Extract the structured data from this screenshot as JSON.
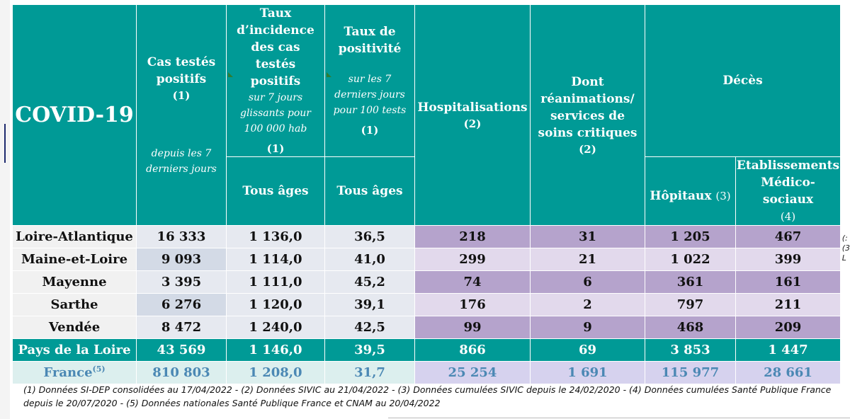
{
  "table": {
    "title": "COVID-19",
    "headers": {
      "cas": {
        "label": "Cas testés positifs",
        "note": "(1)",
        "sub": "depuis les 7 derniers jours"
      },
      "incidence": {
        "label": "Taux d’incidence des cas testés positifs",
        "sub": "sur 7 jours glissants pour 100 000 hab",
        "note": "(1)",
        "age": "Tous âges"
      },
      "positivite": {
        "label": "Taux de positivité",
        "sub": "sur les 7 derniers jours pour 100 tests",
        "note": "(1)",
        "age": "Tous âges"
      },
      "hosp": {
        "label": "Hospitalisations",
        "note": "(2)"
      },
      "rea": {
        "label": "Dont réanimations/ services de soins critiques",
        "note": "(2)"
      },
      "deces": {
        "label": "Décès"
      },
      "hopitaux": {
        "label": "Hôpitaux",
        "note": "(3)"
      },
      "ems": {
        "label": "Etablissements Médico-sociaux",
        "note": "(4)"
      }
    },
    "rows": [
      {
        "name": "Loire-Atlantique",
        "cas": "16 333",
        "incidence": "1 136,0",
        "positivite": "36,5",
        "hosp": "218",
        "rea": "31",
        "hopitaux": "1 205",
        "ems": "467"
      },
      {
        "name": "Maine-et-Loire",
        "cas": "9 093",
        "incidence": "1 114,0",
        "positivite": "41,0",
        "hosp": "299",
        "rea": "21",
        "hopitaux": "1 022",
        "ems": "399"
      },
      {
        "name": "Mayenne",
        "cas": "3 395",
        "incidence": "1 111,0",
        "positivite": "45,2",
        "hosp": "74",
        "rea": "6",
        "hopitaux": "361",
        "ems": "161"
      },
      {
        "name": "Sarthe",
        "cas": "6 276",
        "incidence": "1 120,0",
        "positivite": "39,1",
        "hosp": "176",
        "rea": "2",
        "hopitaux": "797",
        "ems": "211"
      },
      {
        "name": "Vendée",
        "cas": "8 472",
        "incidence": "1 240,0",
        "positivite": "42,5",
        "hosp": "99",
        "rea": "9",
        "hopitaux": "468",
        "ems": "209"
      }
    ],
    "region": {
      "name": "Pays de la Loire",
      "cas": "43 569",
      "incidence": "1 146,0",
      "positivite": "39,5",
      "hosp": "866",
      "rea": "69",
      "hopitaux": "3 853",
      "ems": "1 447"
    },
    "france": {
      "name": "France",
      "note": "(5)",
      "cas": "810 803",
      "incidence": "1 208,0",
      "positivite": "31,7",
      "hosp": "25 254",
      "rea": "1 691",
      "hopitaux": "115 977",
      "ems": "28 661"
    }
  },
  "footnote": "(1) Données SI-DEP consolidées au 17/04/2022 -  (2) Données SIVIC au 21/04/2022 - (3) Données cumulées SIVIC depuis le 24/02/2020 - (4) Données cumulées Santé Publique France depuis le 20/07/2020 - (5) Données nationales Santé Publique France et CNAM au 20/04/2022",
  "edge_right": [
    "(:",
    "(3",
    "L"
  ]
}
